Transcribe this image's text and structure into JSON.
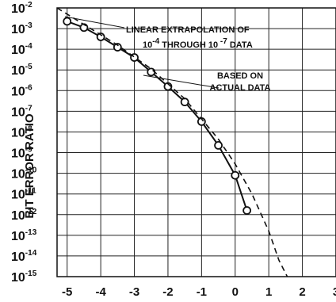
{
  "chart_data": {
    "type": "line",
    "xlabel": "",
    "ylabel": "BIT ERROR RATIO",
    "xlim": [
      -5.3,
      3
    ],
    "ylim": [
      -15,
      -2
    ],
    "y_scale": "log",
    "grid": true,
    "x_ticks": [
      "-5",
      "-4",
      "-3",
      "-2",
      "-1",
      "0",
      "1",
      "2",
      "3"
    ],
    "y_ticks": [
      {
        "base": "10",
        "exp": "-2"
      },
      {
        "base": "10",
        "exp": "-3"
      },
      {
        "base": "10",
        "exp": "-4"
      },
      {
        "base": "10",
        "exp": "-5"
      },
      {
        "base": "10",
        "exp": "-6"
      },
      {
        "base": "10",
        "exp": "-7"
      },
      {
        "base": "10",
        "exp": "-8"
      },
      {
        "base": "10",
        "exp": "-9"
      },
      {
        "base": "10",
        "exp": "-10"
      },
      {
        "base": "10",
        "exp": "-11"
      },
      {
        "base": "10",
        "exp": "-12"
      },
      {
        "base": "10",
        "exp": "-13"
      },
      {
        "base": "10",
        "exp": "-14"
      },
      {
        "base": "10",
        "exp": "-15"
      }
    ],
    "series": [
      {
        "style": "solid-with-circles",
        "x": [
          -5.0,
          -4.5,
          -4.0,
          -3.5,
          -3.0,
          -2.5,
          -2.0,
          -1.5,
          -1.0,
          -0.5,
          0.0,
          0.35
        ],
        "log10_y": [
          -2.65,
          -2.95,
          -3.4,
          -3.9,
          -4.4,
          -5.1,
          -5.8,
          -6.55,
          -7.5,
          -8.65,
          -10.1,
          -11.8
        ]
      },
      {
        "style": "dashed",
        "x": [
          -5.3,
          -4.5,
          -3.5,
          -2.5,
          -1.5,
          -0.5,
          0.0,
          0.5,
          1.0,
          1.3,
          1.55
        ],
        "log10_y": [
          -2.0,
          -2.8,
          -3.8,
          -4.95,
          -6.4,
          -8.35,
          -9.55,
          -11.0,
          -12.8,
          -14.2,
          -15.0
        ]
      }
    ],
    "annotations": {
      "linear_extrapolation": {
        "line1": "LINEAR EXTRAPOLATION OF",
        "line2_parts": [
          {
            "text": "10",
            "sup": "-4"
          },
          {
            "text": " THROUGH 10",
            "sup": " -7"
          },
          {
            "text": " DATA"
          }
        ]
      },
      "based_on_actual": {
        "line1": "BASED ON",
        "line2": "ACTUAL DATA"
      }
    }
  }
}
